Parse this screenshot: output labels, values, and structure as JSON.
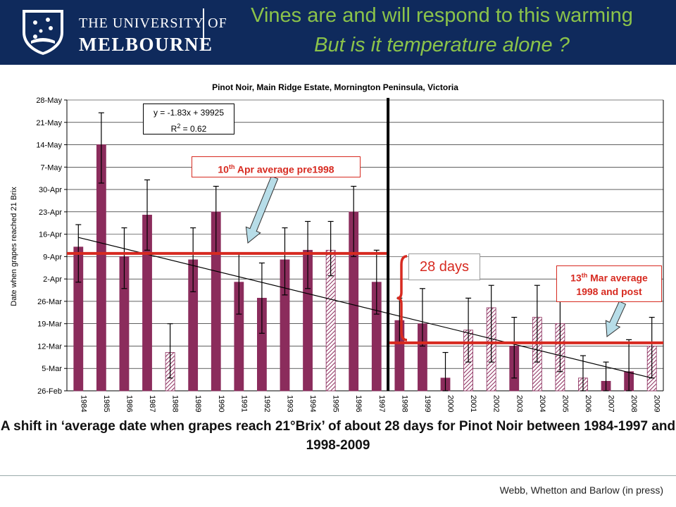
{
  "header": {
    "university_line1": "THE UNIVERSITY OF",
    "university_line2": "MELBOURNE",
    "title_line1": "Vines are and will respond to this warming",
    "title_line2": "But is it temperature alone ?"
  },
  "colors": {
    "header_bg": "#0f2a5c",
    "title_green": "#8bc34a",
    "bar_fill": "#8b2c5c",
    "reference_red": "#d72a20",
    "arrow_fill": "#b7dde8"
  },
  "chart_data": {
    "type": "bar",
    "title": "Pinot Noir, Main Ridge Estate, Mornington Peninsula, Victoria",
    "ylabel": "Date when grapes reached 21 Brix",
    "xlabel": "",
    "grid": true,
    "y_tick_labels": [
      "26-Feb",
      "5-Mar",
      "12-Mar",
      "19-Mar",
      "26-Mar",
      "2-Apr",
      "9-Apr",
      "16-Apr",
      "23-Apr",
      "30-Apr",
      "7-May",
      "14-May",
      "21-May",
      "28-May"
    ],
    "y_unit": "days after 26-Feb",
    "ylim": [
      0,
      91
    ],
    "categories": [
      "1984",
      "1985",
      "1986",
      "1987",
      "1988",
      "1989",
      "1990",
      "1991",
      "1992",
      "1993",
      "1994",
      "1995",
      "1996",
      "1997",
      "1998",
      "1999",
      "2000",
      "2001",
      "2002",
      "2003",
      "2004",
      "2005",
      "2006",
      "2007",
      "2008",
      "2009"
    ],
    "values": [
      45,
      77,
      42,
      55,
      12,
      41,
      56,
      34,
      29,
      41,
      44,
      44,
      56,
      34,
      22,
      21,
      4,
      19,
      26,
      14,
      23,
      21,
      4,
      3,
      6,
      14
    ],
    "error_high": [
      52,
      87,
      51,
      66,
      21,
      51,
      64,
      43,
      40,
      51,
      53,
      53,
      64,
      44,
      29,
      32,
      12,
      29,
      33,
      23,
      33,
      29,
      11,
      9,
      16,
      23
    ],
    "error_low": [
      34,
      65,
      32,
      44,
      4,
      31,
      43,
      24,
      18,
      30,
      32,
      36,
      42,
      24,
      15,
      14,
      0,
      9,
      9,
      4,
      9,
      6,
      0,
      0,
      0,
      4
    ],
    "hatched": [
      false,
      false,
      false,
      false,
      true,
      false,
      false,
      false,
      false,
      false,
      false,
      true,
      false,
      false,
      false,
      false,
      false,
      true,
      true,
      false,
      true,
      true,
      true,
      false,
      false,
      true
    ],
    "trendline": {
      "equation": "y = -1.83x + 39925",
      "r2_label": "R",
      "r2_sup": "2",
      "r2_value": " = 0.62",
      "start": 48,
      "end": 4
    },
    "reference_lines": [
      {
        "label_main": "10",
        "label_sup": "th",
        "label_rest": " Apr average pre1998",
        "value": 43,
        "from": "1984",
        "to": "1997"
      },
      {
        "label_main": "13",
        "label_sup": "th",
        "label_rest": " Mar average",
        "label_line2": "1998 and post",
        "value": 15,
        "from": "1998",
        "to": "2009"
      }
    ],
    "divider_after": "1997",
    "shift_label": "28 days"
  },
  "caption": "A shift in ‘average date when grapes reach 21°Brix’ of about 28 days for Pinot Noir between 1984-1997 and 1998-2009",
  "credit": "Webb, Whetton and Barlow (in press)"
}
